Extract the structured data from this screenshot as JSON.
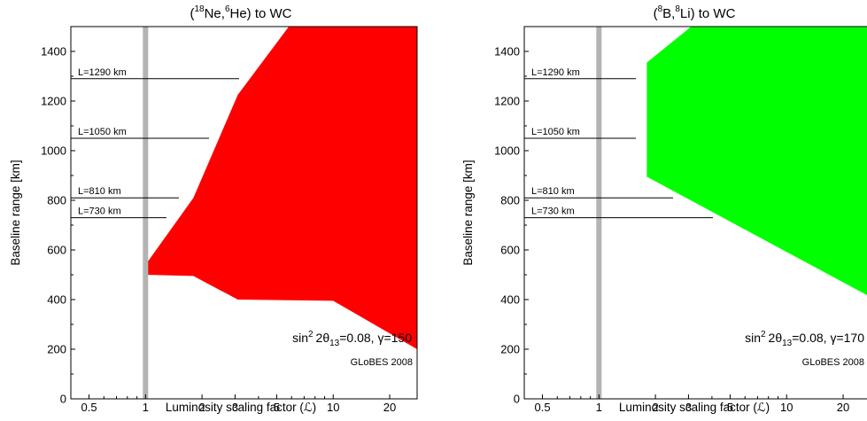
{
  "chart_data": [
    {
      "type": "area",
      "title_main": "Ne",
      "title_super1": "18",
      "title_mid": "Ne,",
      "title_super2": "6",
      "title_end": "He) to WC",
      "title_parts": [
        "(",
        "18",
        "Ne,",
        "6",
        "He) to WC"
      ],
      "xlabel": "Luminosity scaling factor (ℒ)",
      "ylabel": "Baseline range [km]",
      "xscale": "log",
      "xlim": [
        0.4,
        28
      ],
      "ylim": [
        0,
        1500
      ],
      "xticks": [
        0.5,
        1,
        2,
        3,
        5,
        10,
        20
      ],
      "xtick_labels": [
        "0.5",
        "1",
        "2",
        "3",
        "5",
        "10",
        "20"
      ],
      "yticks": [
        0,
        200,
        400,
        600,
        800,
        1000,
        1200,
        1400
      ],
      "ytick_labels": [
        "0",
        "200",
        "400",
        "600",
        "800",
        "1000",
        "1200",
        "1400"
      ],
      "reference_x": 1,
      "baselines": [
        {
          "label": "L=1290 km",
          "value": 1290
        },
        {
          "label": "L=1050 km",
          "value": 1050
        },
        {
          "label": "L=810 km",
          "value": 810
        },
        {
          "label": "L=730 km",
          "value": 730
        }
      ],
      "region_color": "#ff0000",
      "region": [
        [
          1.0,
          540
        ],
        [
          1.8,
          810
        ],
        [
          3.1,
          1225
        ],
        [
          5.8,
          1500
        ],
        [
          28,
          1500
        ],
        [
          28,
          200
        ],
        [
          10,
          395
        ],
        [
          3.1,
          400
        ],
        [
          1.8,
          495
        ],
        [
          1.0,
          500
        ]
      ],
      "annotation": {
        "sin": "sin",
        "sup": "2",
        "mid": "2θ",
        "sub": "13",
        "rest": "=0.08, γ=150"
      },
      "credit": "GLoBES 2008"
    },
    {
      "type": "area",
      "title_parts": [
        "(",
        "8",
        "B,",
        "8",
        "Li) to WC"
      ],
      "xlabel": "Luminosity scaling factor (ℒ)",
      "ylabel": "Baseline range [km]",
      "xscale": "log",
      "xlim": [
        0.4,
        28
      ],
      "ylim": [
        0,
        1500
      ],
      "xticks": [
        0.5,
        1,
        2,
        3,
        5,
        10,
        20
      ],
      "xtick_labels": [
        "0.5",
        "1",
        "2",
        "3",
        "5",
        "10",
        "20"
      ],
      "yticks": [
        0,
        200,
        400,
        600,
        800,
        1000,
        1200,
        1400
      ],
      "ytick_labels": [
        "0",
        "200",
        "400",
        "600",
        "800",
        "1000",
        "1200",
        "1400"
      ],
      "reference_x": 1,
      "baselines": [
        {
          "label": "L=1290 km",
          "value": 1290
        },
        {
          "label": "L=1050 km",
          "value": 1050
        },
        {
          "label": "L=810 km",
          "value": 810
        },
        {
          "label": "L=730 km",
          "value": 730
        }
      ],
      "region_color": "#00ff00",
      "region": [
        [
          1.8,
          1355
        ],
        [
          3.1,
          1500
        ],
        [
          28,
          1500
        ],
        [
          28,
          410
        ],
        [
          1.8,
          895
        ]
      ],
      "annotation": {
        "sin": "sin",
        "sup": "2",
        "mid": "2θ",
        "sub": "13",
        "rest": "=0.08, γ=170"
      },
      "credit": "GLoBES 2008"
    }
  ]
}
